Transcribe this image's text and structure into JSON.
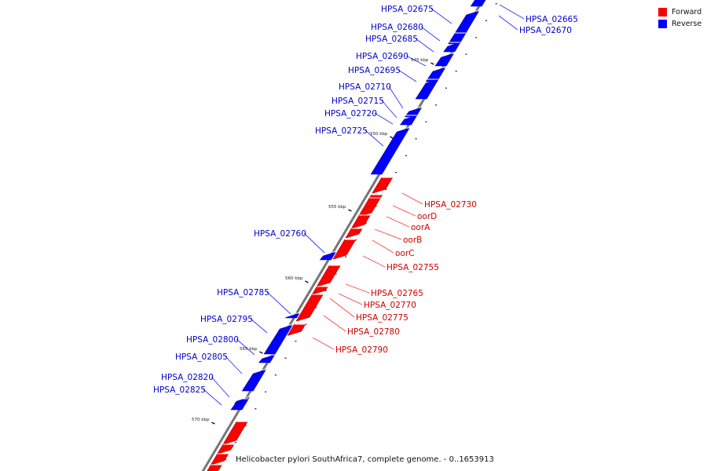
{
  "title": "Helicobacter pylori SouthAfrica7, complete genome. - 0..1653913",
  "legend": [
    {
      "label": "Forward",
      "color": "#ff0000"
    },
    {
      "label": "Reverse",
      "color": "#0000ff"
    }
  ],
  "colors": {
    "forward": "#ff0000",
    "reverse": "#0000ff",
    "backbone": "#777777"
  },
  "scale_ticks": [
    "545 kbp",
    "550 kbp",
    "555 kbp",
    "560 kbp",
    "565 kbp",
    "570 kbp"
  ],
  "genes": [
    {
      "label": "HPSA_02665",
      "strand": "reverse"
    },
    {
      "label": "HPSA_02670",
      "strand": "reverse"
    },
    {
      "label": "HPSA_02675",
      "strand": "reverse"
    },
    {
      "label": "HPSA_02680",
      "strand": "reverse"
    },
    {
      "label": "HPSA_02685",
      "strand": "reverse"
    },
    {
      "label": "HPSA_02690",
      "strand": "reverse"
    },
    {
      "label": "HPSA_02695",
      "strand": "reverse"
    },
    {
      "label": "HPSA_02710",
      "strand": "reverse"
    },
    {
      "label": "HPSA_02715",
      "strand": "reverse"
    },
    {
      "label": "HPSA_02720",
      "strand": "reverse"
    },
    {
      "label": "HPSA_02725",
      "strand": "reverse"
    },
    {
      "label": "HPSA_02730",
      "strand": "forward"
    },
    {
      "label": "oorD",
      "strand": "forward"
    },
    {
      "label": "oorA",
      "strand": "forward"
    },
    {
      "label": "oorB",
      "strand": "forward"
    },
    {
      "label": "oorC",
      "strand": "forward"
    },
    {
      "label": "HPSA_02755",
      "strand": "forward"
    },
    {
      "label": "HPSA_02760",
      "strand": "reverse"
    },
    {
      "label": "HPSA_02765",
      "strand": "forward"
    },
    {
      "label": "HPSA_02770",
      "strand": "forward"
    },
    {
      "label": "HPSA_02775",
      "strand": "forward"
    },
    {
      "label": "HPSA_02780",
      "strand": "forward"
    },
    {
      "label": "HPSA_02785",
      "strand": "reverse"
    },
    {
      "label": "HPSA_02790",
      "strand": "forward"
    },
    {
      "label": "HPSA_02795",
      "strand": "reverse"
    },
    {
      "label": "HPSA_02800",
      "strand": "reverse"
    },
    {
      "label": "HPSA_02805",
      "strand": "reverse"
    },
    {
      "label": "HPSA_02820",
      "strand": "reverse"
    },
    {
      "label": "HPSA_02825",
      "strand": "reverse"
    }
  ]
}
